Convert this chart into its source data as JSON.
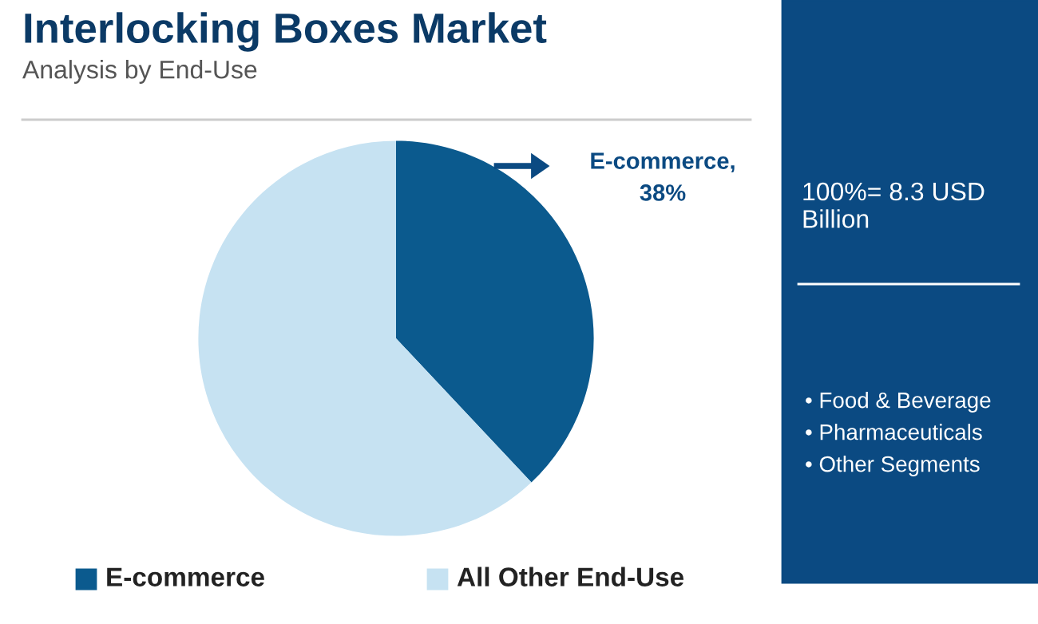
{
  "chart_data": {
    "type": "pie",
    "title": "Interlocking Boxes Market",
    "subtitle": "Analysis by End-Use",
    "categories": [
      "E-commerce",
      "All Other End-Use"
    ],
    "values": [
      38,
      62
    ],
    "colors": [
      "#0b5a8e",
      "#c6e2f2"
    ],
    "value_labels": [
      "E-commerce,\n38%",
      null
    ],
    "legend": "bottom",
    "annotations": [
      "100%= 8.3 USD Billion",
      "• Food & Beverage",
      "• Pharmaceuticals",
      "• Other Segments"
    ]
  }
}
